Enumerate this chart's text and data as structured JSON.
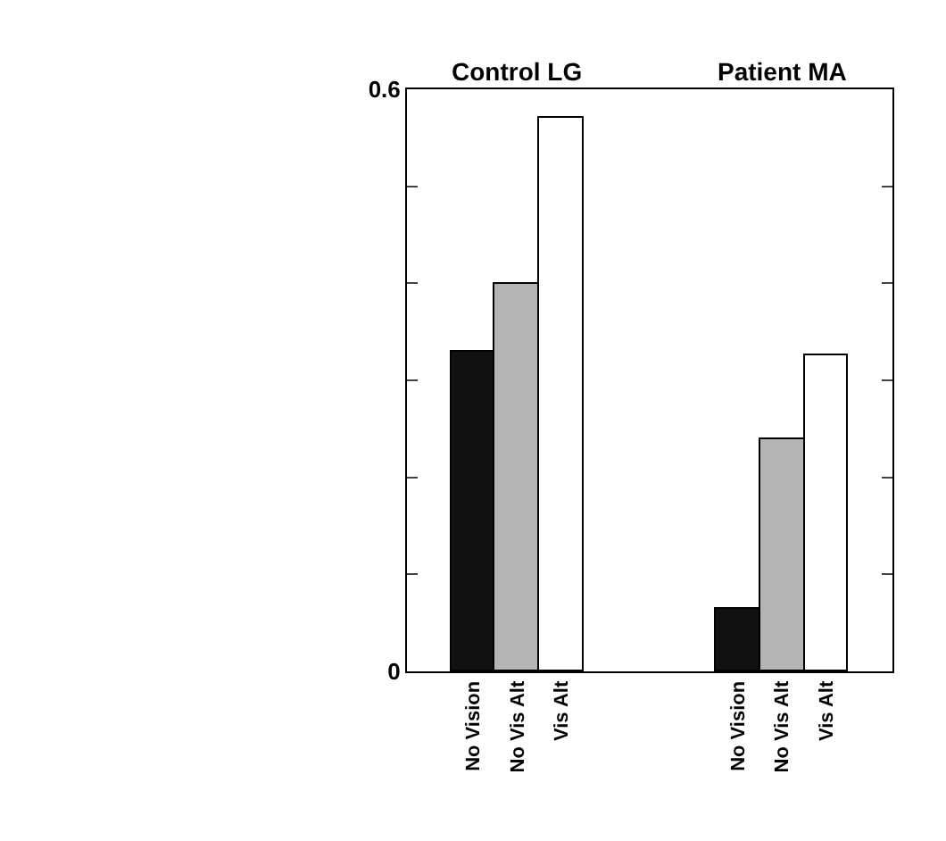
{
  "chart_data": {
    "type": "bar",
    "categories": [
      null,
      "No Vision",
      "No Vis Alt",
      "Vis Alt",
      null,
      null,
      null,
      "No Vision",
      "No Vis Alt",
      "Vis Alt",
      null
    ],
    "values": [
      null,
      0.33,
      0.4,
      0.57,
      null,
      null,
      null,
      0.065,
      0.24,
      0.325,
      null
    ],
    "colors": [
      "#ffffff",
      "#111111",
      "#b4b4b4",
      "#ffffff",
      "#ffffff",
      "#ffffff",
      "#ffffff",
      "#111111",
      "#b4b4b4",
      "#ffffff",
      "#ffffff"
    ],
    "ylim": [
      0,
      0.6
    ],
    "yticks": [
      0,
      {
        "value": 0.1,
        "label": null
      },
      {
        "value": 0.2,
        "label": null
      },
      {
        "value": 0.3,
        "label": null
      },
      {
        "value": 0.4,
        "label": null
      },
      {
        "value": 0.5,
        "label": null
      },
      0.6
    ],
    "annotations": [
      "Control LG",
      "Patient MA"
    ]
  }
}
